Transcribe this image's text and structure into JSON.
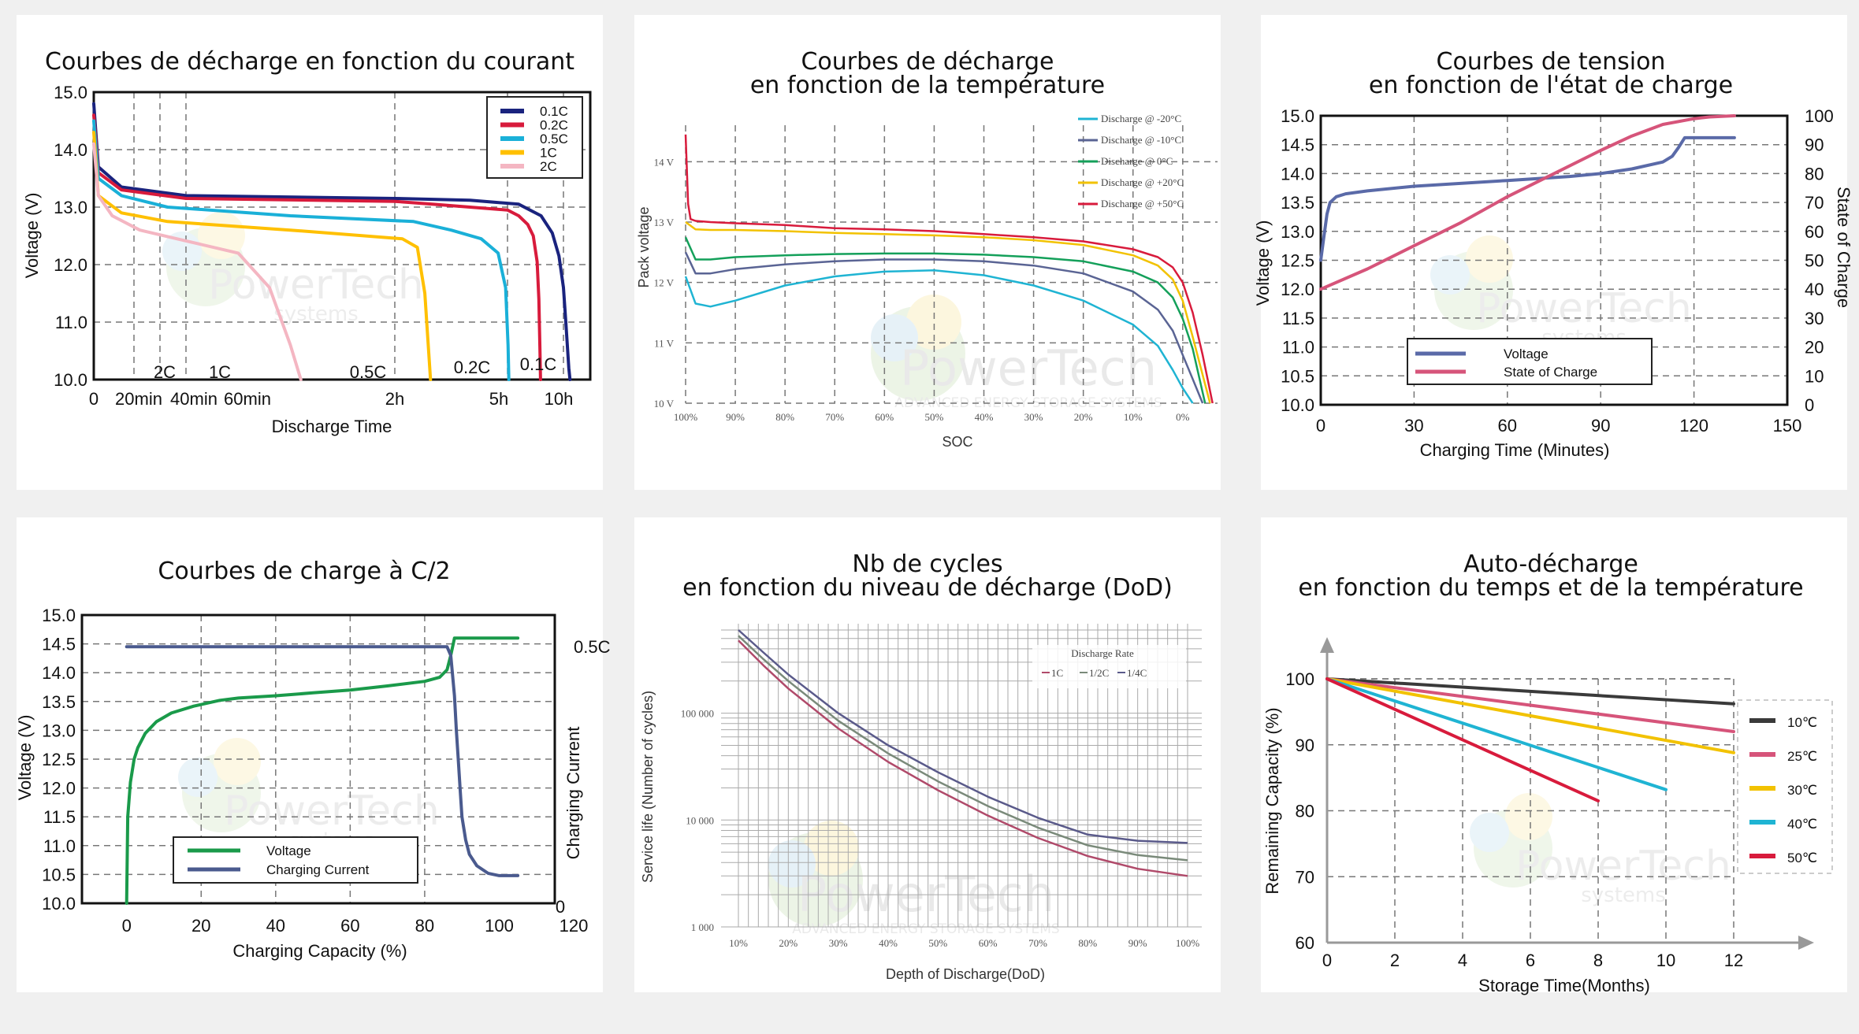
{
  "chart_data": [
    {
      "type": "line",
      "title": "Courbes de décharge en fonction du courant",
      "xlabel": "Discharge Time",
      "ylabel": "Voltage (V)",
      "ylim": [
        10.0,
        15.0
      ],
      "xlim": [
        0,
        11.2
      ],
      "x_unit": "hours",
      "yticks": [
        "15.0",
        "14.0",
        "13.0",
        "12.0",
        "11.0",
        "10.0"
      ],
      "xtick_labels": [
        "0",
        "20min",
        "40min",
        "60min",
        "2h",
        "5h",
        "10h"
      ],
      "grid": true,
      "legend_position": "top-right",
      "curve_labels": [
        "2C",
        "1C",
        "0.5C",
        "0.2C",
        "0.1C"
      ],
      "series": [
        {
          "name": "0.1C",
          "color": "#1a237e",
          "x": [
            0,
            0.05,
            0.3,
            1,
            2,
            4,
            6,
            8,
            9,
            9.6,
            10.0,
            10.2,
            10.45,
            10.55
          ],
          "y": [
            14.8,
            13.7,
            13.35,
            13.2,
            13.15,
            13.12,
            13.05,
            12.85,
            12.55,
            12.15,
            11.6,
            11.0,
            10.2,
            10.0
          ]
        },
        {
          "name": "0.2C",
          "color": "#d81b3c",
          "x": [
            0,
            0.05,
            0.3,
            1,
            2,
            3,
            4,
            5,
            6,
            6.8,
            7.3,
            7.65,
            7.8,
            7.9,
            7.95
          ],
          "y": [
            14.6,
            13.6,
            13.3,
            13.15,
            13.1,
            13.05,
            13.0,
            12.95,
            12.85,
            12.7,
            12.5,
            12.05,
            11.4,
            10.5,
            10.0
          ]
        },
        {
          "name": "0.5C",
          "color": "#1ab0d8",
          "x": [
            0,
            0.05,
            0.3,
            0.8,
            1.5,
            2.5,
            3.5,
            4.3,
            4.75,
            4.95,
            5.05,
            5.12
          ],
          "y": [
            14.5,
            13.5,
            13.2,
            13.0,
            12.85,
            12.75,
            12.6,
            12.45,
            12.2,
            11.6,
            10.6,
            10.0
          ]
        },
        {
          "name": "1C",
          "color": "#ffc000",
          "x": [
            0,
            0.05,
            0.3,
            0.8,
            1.5,
            2.2,
            2.6,
            2.8,
            2.9,
            2.95
          ],
          "y": [
            14.3,
            13.2,
            12.9,
            12.75,
            12.6,
            12.45,
            12.3,
            11.5,
            10.5,
            10.0
          ]
        },
        {
          "name": "2C",
          "color": "#f4b6c2",
          "x": [
            0,
            0.05,
            0.2,
            0.5,
            0.9,
            1.25,
            1.4,
            1.5,
            1.55
          ],
          "y": [
            14.1,
            13.2,
            12.85,
            12.6,
            12.45,
            12.2,
            11.6,
            10.6,
            10.0
          ]
        }
      ]
    },
    {
      "type": "line",
      "title": "Courbes de décharge\nen fonction de la température",
      "xlabel": "SOC",
      "ylabel": "Pack voltage",
      "ylim": [
        10,
        14.5
      ],
      "xlim": [
        100,
        -7
      ],
      "x_unit": "percent",
      "yticks": [
        "14 V",
        "13 V",
        "12 V",
        "11 V",
        "10 V"
      ],
      "xticks": [
        "100%",
        "90%",
        "80%",
        "70%",
        "60%",
        "50%",
        "40%",
        "30%",
        "20%",
        "10%",
        "0%"
      ],
      "grid": true,
      "legend_position": "top-right",
      "series": [
        {
          "name": "Discharge @ -20°C",
          "color": "#1fb4d3",
          "x": [
            100,
            98,
            95,
            90,
            80,
            70,
            60,
            50,
            40,
            30,
            20,
            10,
            5,
            2,
            0,
            -2
          ],
          "y": [
            12.1,
            11.65,
            11.6,
            11.7,
            11.95,
            12.1,
            12.18,
            12.2,
            12.12,
            11.95,
            11.7,
            11.3,
            10.95,
            10.55,
            10.25,
            10.0
          ]
        },
        {
          "name": "Discharge @ -10°C",
          "color": "#5a6494",
          "x": [
            100,
            98,
            95,
            90,
            80,
            70,
            60,
            50,
            40,
            30,
            20,
            10,
            5,
            2,
            0,
            -2,
            -4
          ],
          "y": [
            12.5,
            12.15,
            12.15,
            12.22,
            12.3,
            12.35,
            12.38,
            12.38,
            12.35,
            12.28,
            12.15,
            11.85,
            11.55,
            11.2,
            10.8,
            10.4,
            10.0
          ]
        },
        {
          "name": "Discharge @ 0°C",
          "color": "#14a05a",
          "x": [
            100,
            98,
            95,
            90,
            80,
            70,
            60,
            50,
            40,
            30,
            20,
            10,
            5,
            2,
            0,
            -2,
            -4.5
          ],
          "y": [
            12.75,
            12.38,
            12.38,
            12.42,
            12.45,
            12.47,
            12.48,
            12.48,
            12.46,
            12.42,
            12.35,
            12.18,
            12.0,
            11.75,
            11.4,
            10.9,
            10.0
          ]
        },
        {
          "name": "Discharge @ +20°C",
          "color": "#f2c200",
          "x": [
            100,
            98,
            95,
            90,
            80,
            70,
            60,
            50,
            40,
            30,
            20,
            10,
            5,
            2,
            0,
            -2,
            -5.5
          ],
          "y": [
            13.0,
            12.88,
            12.87,
            12.87,
            12.85,
            12.82,
            12.8,
            12.78,
            12.75,
            12.7,
            12.62,
            12.45,
            12.28,
            12.05,
            11.7,
            11.1,
            10.0
          ]
        },
        {
          "name": "Discharge @ +50°C",
          "color": "#d81b3c",
          "x": [
            100,
            99.5,
            99,
            98,
            95,
            90,
            80,
            70,
            60,
            50,
            40,
            30,
            20,
            10,
            5,
            2,
            0,
            -2,
            -4,
            -6
          ],
          "y": [
            14.45,
            13.3,
            13.05,
            13.02,
            13.0,
            12.98,
            12.95,
            12.9,
            12.88,
            12.85,
            12.8,
            12.75,
            12.68,
            12.55,
            12.42,
            12.25,
            12.0,
            11.5,
            10.8,
            10.0
          ]
        }
      ]
    },
    {
      "type": "line",
      "title": "Courbes de tension\nen fonction de l'état de charge",
      "xlabel": "Charging Time (Minutes)",
      "ylabel": "Voltage (V)",
      "y2label": "State of Charge",
      "ylim": [
        10.0,
        15.0
      ],
      "y2lim": [
        0,
        100
      ],
      "xlim": [
        0,
        150
      ],
      "yticks": [
        "15.0",
        "14.5",
        "14.0",
        "13.5",
        "13.0",
        "12.5",
        "12.0",
        "11.5",
        "11.0",
        "10.5",
        "10.0"
      ],
      "y2ticks": [
        "100",
        "90",
        "80",
        "70",
        "60",
        "50",
        "40",
        "30",
        "20",
        "10",
        "0"
      ],
      "xticks": [
        "0",
        "30",
        "60",
        "90",
        "120",
        "150"
      ],
      "grid": true,
      "legend_position": "bottom-left",
      "series": [
        {
          "name": "Voltage",
          "axis": "left",
          "color": "#5a6aa8",
          "x": [
            0,
            1,
            2,
            3,
            5,
            8,
            15,
            30,
            60,
            80,
            90,
            100,
            110,
            113,
            115,
            117,
            120,
            130,
            133
          ],
          "y": [
            12.5,
            12.9,
            13.3,
            13.5,
            13.6,
            13.65,
            13.7,
            13.78,
            13.88,
            13.95,
            14.0,
            14.08,
            14.2,
            14.3,
            14.45,
            14.62,
            14.62,
            14.62,
            14.62
          ]
        },
        {
          "name": "State of Charge",
          "axis": "right",
          "color": "#d6547a",
          "x": [
            0,
            15,
            30,
            45,
            60,
            75,
            90,
            100,
            110,
            120,
            125,
            133
          ],
          "y": [
            40,
            47,
            55,
            63,
            72,
            80,
            88,
            93,
            97,
            99,
            99.6,
            100
          ]
        }
      ]
    },
    {
      "type": "line",
      "title": "Courbes de charge à C/2",
      "xlabel": "Charging Capacity (%)",
      "ylabel": "Voltage (V)",
      "y2label": "Charging Current",
      "y2tick_labels": [
        "0.5C",
        "0"
      ],
      "ylim": [
        10.0,
        15.0
      ],
      "xlim": [
        -12,
        120
      ],
      "yticks": [
        "15.0",
        "14.5",
        "14.0",
        "13.5",
        "13.0",
        "12.5",
        "12.0",
        "11.5",
        "11.0",
        "10.5",
        "10.0"
      ],
      "xticks": [
        "0",
        "20",
        "40",
        "60",
        "80",
        "100",
        "120"
      ],
      "grid": true,
      "legend_position": "bottom-left",
      "series": [
        {
          "name": "Voltage",
          "color": "#1a9a4a",
          "x": [
            0,
            0.3,
            1,
            2,
            3,
            5,
            8,
            12,
            18,
            25,
            30,
            40,
            50,
            60,
            70,
            80,
            84,
            86,
            87,
            88,
            105
          ],
          "y": [
            10.0,
            11.5,
            12.1,
            12.5,
            12.7,
            12.95,
            13.15,
            13.3,
            13.42,
            13.52,
            13.56,
            13.6,
            13.65,
            13.7,
            13.77,
            13.85,
            13.92,
            14.05,
            14.3,
            14.6,
            14.6
          ]
        },
        {
          "name": "Charging Current",
          "color": "#4a5a8e",
          "x": [
            0,
            20,
            40,
            60,
            80,
            86,
            87,
            88,
            88.5,
            89,
            89.5,
            90,
            91,
            92,
            94,
            97,
            100,
            105
          ],
          "y": [
            14.45,
            14.45,
            14.45,
            14.45,
            14.45,
            14.45,
            14.3,
            13.6,
            13.0,
            12.5,
            12.0,
            11.5,
            11.1,
            10.85,
            10.65,
            10.52,
            10.48,
            10.48
          ]
        }
      ]
    },
    {
      "type": "line",
      "title": "Nb de cycles\nen fonction du niveau de décharge (DoD)",
      "xlabel": "Depth of Discharge(DoD)",
      "ylabel": "Service life (Number of cycles)",
      "y_scale": "log",
      "ylim": [
        1000,
        600000
      ],
      "xlim": [
        10,
        100
      ],
      "yticks": [
        "1 000",
        "10 000",
        "100 000"
      ],
      "xticks": [
        "10%",
        "20%",
        "30%",
        "40%",
        "50%",
        "60%",
        "70%",
        "80%",
        "90%",
        "100%"
      ],
      "grid": true,
      "legend_title": "Discharge Rate",
      "legend_position": "top-right",
      "series": [
        {
          "name": "1C",
          "color": "#b04a6a",
          "x": [
            10,
            15,
            20,
            30,
            40,
            50,
            60,
            70,
            80,
            90,
            100
          ],
          "y": [
            480000,
            280000,
            170000,
            72000,
            35000,
            19000,
            11000,
            6800,
            4600,
            3500,
            3000
          ]
        },
        {
          "name": "1/2C",
          "color": "#7a8a7a",
          "x": [
            10,
            15,
            20,
            30,
            40,
            50,
            60,
            70,
            80,
            90,
            100
          ],
          "y": [
            530000,
            320000,
            200000,
            85000,
            42000,
            23000,
            13500,
            8500,
            5800,
            4700,
            4200
          ]
        },
        {
          "name": "1/4C",
          "color": "#5a5a8a",
          "x": [
            10,
            15,
            20,
            30,
            40,
            50,
            60,
            70,
            80,
            90,
            100
          ],
          "y": [
            600000,
            370000,
            230000,
            100000,
            50000,
            28000,
            16500,
            10500,
            7300,
            6400,
            6100
          ]
        }
      ]
    },
    {
      "type": "line",
      "title": "Auto-décharge\nen fonction du temps et de la température",
      "xlabel": "Storage Time(Months)",
      "ylabel": "Remaining Capacity (%)",
      "ylim": [
        60,
        100
      ],
      "xlim": [
        0,
        12
      ],
      "yticks": [
        "100",
        "90",
        "80",
        "70",
        "60"
      ],
      "xticks": [
        "0",
        "2",
        "4",
        "6",
        "8",
        "10",
        "12"
      ],
      "grid": true,
      "legend_position": "right",
      "series": [
        {
          "name": "10℃",
          "color": "#3a3a3a",
          "x": [
            0,
            12
          ],
          "y": [
            100,
            96.2
          ]
        },
        {
          "name": "25℃",
          "color": "#d6547a",
          "x": [
            0,
            12
          ],
          "y": [
            100,
            92
          ]
        },
        {
          "name": "30℃",
          "color": "#f2c200",
          "x": [
            0,
            12
          ],
          "y": [
            100,
            88.8
          ]
        },
        {
          "name": "40℃",
          "color": "#1fb4d3",
          "x": [
            0,
            10
          ],
          "y": [
            100,
            83.2
          ]
        },
        {
          "name": "50℃",
          "color": "#d81b3c",
          "x": [
            0,
            8
          ],
          "y": [
            100,
            81.5
          ]
        }
      ]
    }
  ],
  "watermarks": [
    {
      "brand": "PowerTech",
      "tagline": "systems"
    },
    {
      "brand": "PowerTech",
      "tagline": "ADVANCED ENERGY STORAGE SYSTEMS"
    }
  ]
}
